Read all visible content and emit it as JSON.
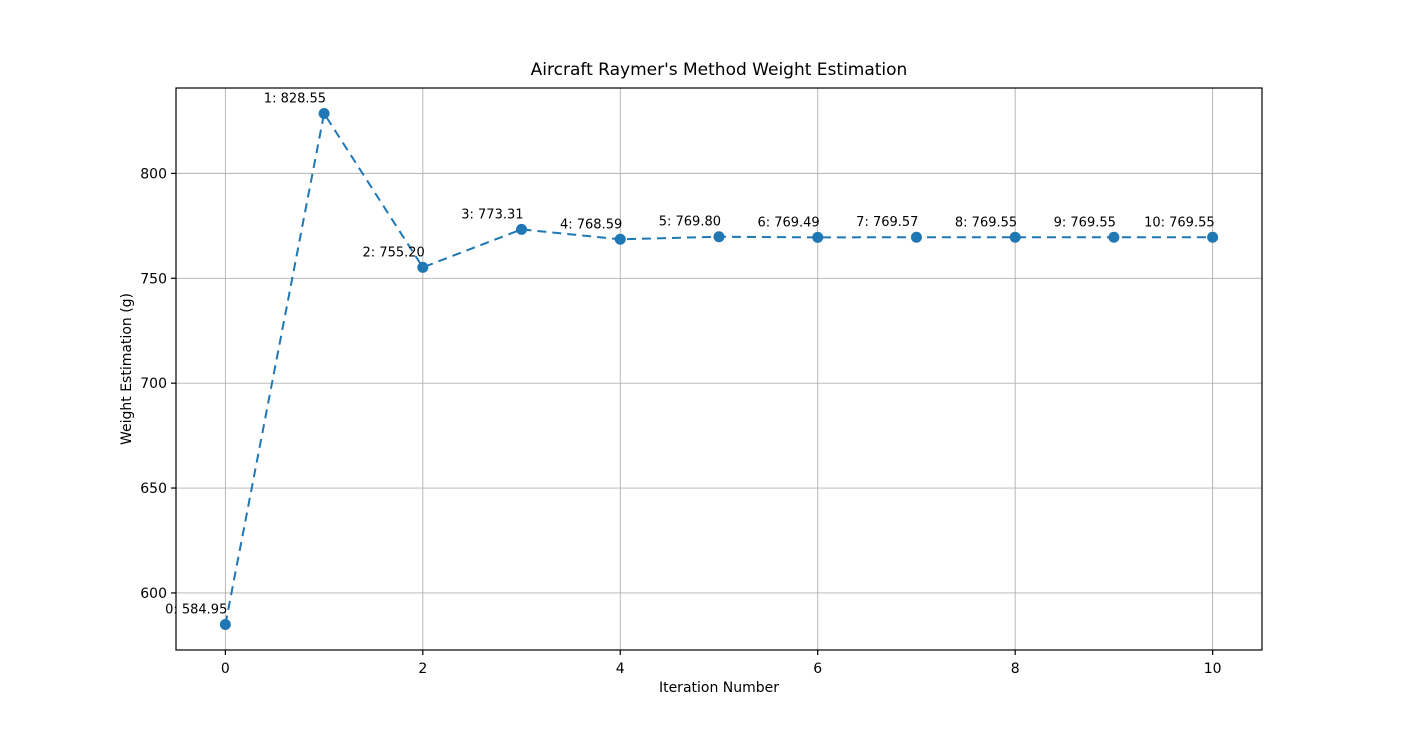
{
  "chart_data": {
    "type": "line",
    "title": "Aircraft Raymer's Method Weight Estimation",
    "xlabel": "Iteration Number",
    "ylabel": "Weight Estimation (g)",
    "x": [
      0,
      1,
      2,
      3,
      4,
      5,
      6,
      7,
      8,
      9,
      10
    ],
    "values": [
      584.95,
      828.55,
      755.2,
      773.31,
      768.59,
      769.8,
      769.49,
      769.57,
      769.55,
      769.55,
      769.55
    ],
    "point_labels": [
      "0: 584.95",
      "1: 828.55",
      "2: 755.20",
      "3: 773.31",
      "4: 768.59",
      "5: 769.80",
      "6: 769.49",
      "7: 769.57",
      "8: 769.55",
      "9: 769.55",
      "10: 769.55"
    ],
    "xticks": [
      0,
      2,
      4,
      6,
      8,
      10
    ],
    "yticks": [
      600,
      650,
      700,
      750,
      800
    ],
    "xlim": [
      -0.5,
      10.5
    ],
    "ylim": [
      572.8,
      840.7
    ],
    "grid": true,
    "legend": "none",
    "line_color": "#1f77b4",
    "line_style": "dashed",
    "marker": "circle",
    "grid_color": "#b0b0b0",
    "spine_color": "#000000",
    "text_color": "#000000"
  }
}
